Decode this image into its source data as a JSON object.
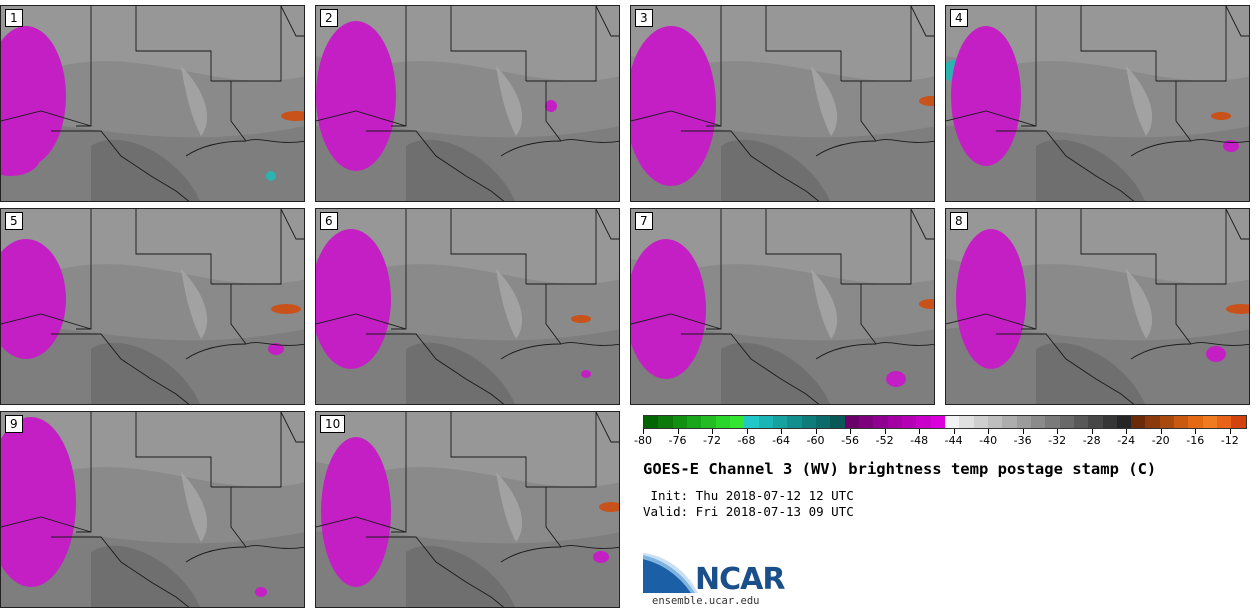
{
  "panels": [
    {
      "label": "1"
    },
    {
      "label": "2"
    },
    {
      "label": "3"
    },
    {
      "label": "4"
    },
    {
      "label": "5"
    },
    {
      "label": "6"
    },
    {
      "label": "7"
    },
    {
      "label": "8"
    },
    {
      "label": "9"
    },
    {
      "label": "10"
    }
  ],
  "colorbar": {
    "colors": [
      "#006400",
      "#0b7a0b",
      "#129012",
      "#1aa61a",
      "#22bd22",
      "#2ad42a",
      "#33e633",
      "#20c8c8",
      "#1bb5b5",
      "#17a2a2",
      "#138f8f",
      "#0f7c7c",
      "#0b6a6a",
      "#085858",
      "#6a006a",
      "#7d007d",
      "#900090",
      "#a300a3",
      "#b600b6",
      "#c900c9",
      "#dc00dc",
      "#f2f2f2",
      "#e0e0e0",
      "#cfcfcf",
      "#bebebe",
      "#adadad",
      "#9c9c9c",
      "#8b8b8b",
      "#7a7a7a",
      "#696969",
      "#585858",
      "#474747",
      "#363636",
      "#252525",
      "#6b2a0a",
      "#8a3a0c",
      "#a84a0e",
      "#c75a10",
      "#e36a12",
      "#f07a20",
      "#e8621a",
      "#d2430f"
    ],
    "min": -80,
    "max": -10,
    "tick_labels": [
      "-80",
      "-76",
      "-72",
      "-68",
      "-64",
      "-60",
      "-56",
      "-52",
      "-48",
      "-44",
      "-40",
      "-36",
      "-32",
      "-28",
      "-24",
      "-20",
      "-16",
      "-12"
    ],
    "tick_values": [
      -80,
      -76,
      -72,
      -68,
      -64,
      -60,
      -56,
      -52,
      -48,
      -44,
      -40,
      -36,
      -32,
      -28,
      -24,
      -20,
      -16,
      -12
    ]
  },
  "title": "GOES-E Channel 3 (WV) brightness temp postage stamp (C)",
  "init_line": " Init: Thu 2018-07-12 12 UTC",
  "valid_line": "Valid: Fri 2018-07-13 09 UTC",
  "logo_text": "NCAR",
  "site": "ensemble.ucar.edu",
  "colors": {
    "cold_cloud": "#2ab3b0",
    "moist_magenta": "#c41fc4",
    "warm_orange": "#c8521a",
    "background_gray": "#8a8a8a"
  }
}
